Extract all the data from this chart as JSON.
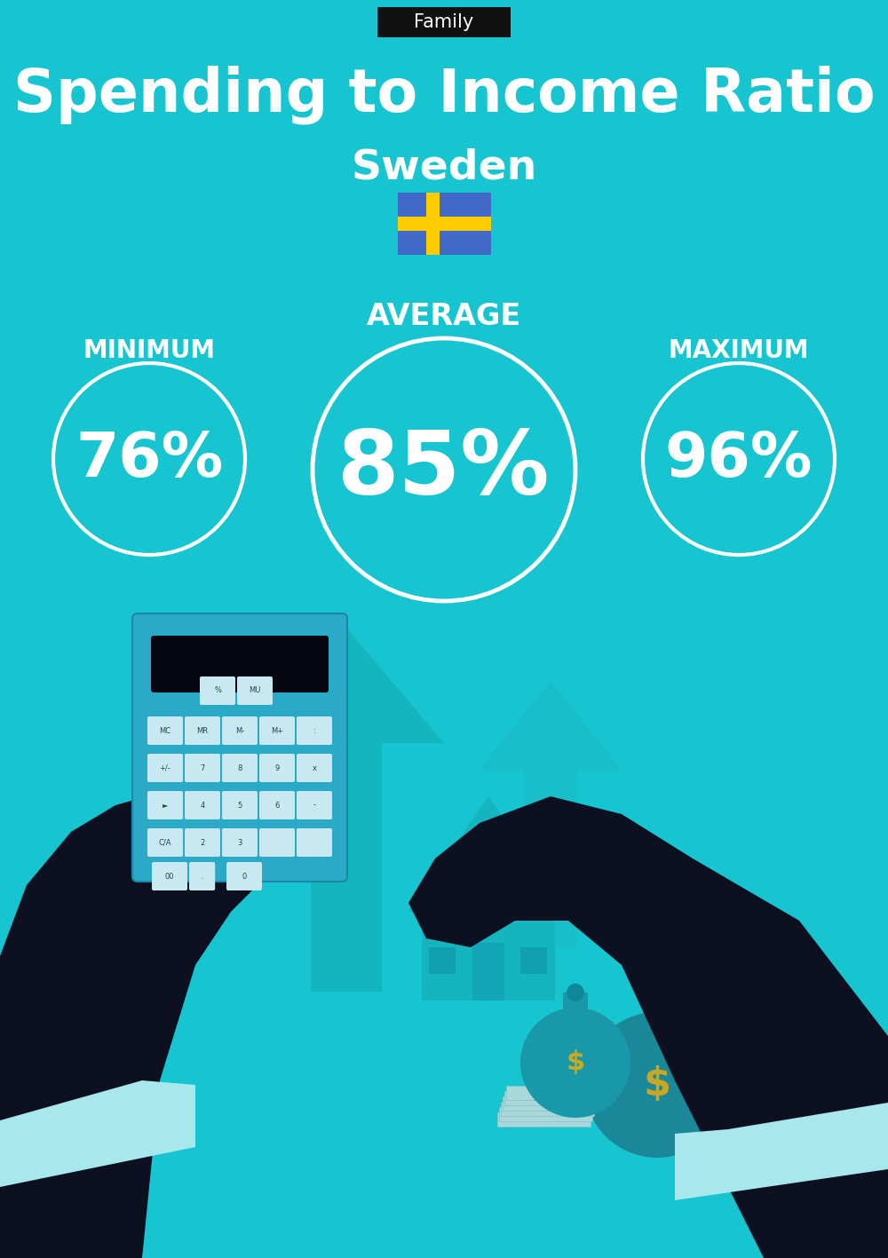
{
  "bg_color": "#17C5D0",
  "title_tag": "Family",
  "title_tag_bg": "#111111",
  "title_tag_color": "#ffffff",
  "main_title": "Spending to Income Ratio",
  "subtitle": "Sweden",
  "avg_label": "AVERAGE",
  "min_label": "MINIMUM",
  "max_label": "MAXIMUM",
  "avg_value": "85%",
  "min_value": "76%",
  "max_value": "96%",
  "circle_color": "#ffffff",
  "text_color": "#ffffff",
  "flag_blue": "#4169C8",
  "flag_yellow": "#FFCC00",
  "hand_color": "#0D1020",
  "calc_color": "#2BAAC8",
  "calc_screen": "#050810",
  "btn_color": "#C8E8F2",
  "btn_text": "#2A4455",
  "cuff_color": "#A8E8EC",
  "arrow_color": "#15B5C0",
  "house_color": "#15B5C0",
  "bag1_color": "#1898A8",
  "bag2_color": "#1A8898",
  "bag_dollar_color": "#C8AA20",
  "bills_color": "#A8D8DC"
}
